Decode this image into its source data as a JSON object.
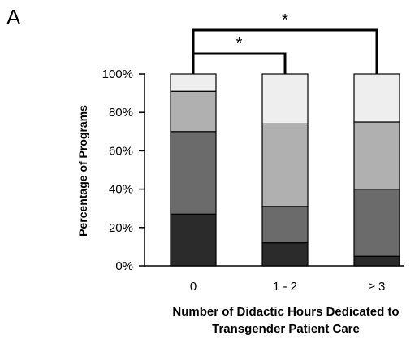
{
  "panel_label": "A",
  "chart_data": {
    "type": "bar",
    "stacked": true,
    "categories": [
      "0",
      "1 - 2",
      "≥ 3"
    ],
    "series": [
      {
        "values": [
          27,
          12,
          5
        ],
        "color": "#2b2b2b"
      },
      {
        "values": [
          43,
          19,
          35
        ],
        "color": "#6b6b6b"
      },
      {
        "values": [
          21,
          43,
          35
        ],
        "color": "#b0b0b0"
      },
      {
        "values": [
          9,
          26,
          25
        ],
        "color": "#eeeeee"
      }
    ],
    "ylim": [
      0,
      100
    ],
    "yticks": [
      "0%",
      "20%",
      "40%",
      "60%",
      "80%",
      "100%"
    ],
    "ylabel": "Percentage of Programs",
    "xlabel_lines": [
      "Number of Didactic Hours Dedicated to",
      "Transgender Patient Care"
    ],
    "grid": false,
    "significance": [
      {
        "from": "0",
        "to": "1 - 2",
        "label": "*"
      },
      {
        "from": "0",
        "to": "≥ 3",
        "label": "*"
      }
    ]
  }
}
